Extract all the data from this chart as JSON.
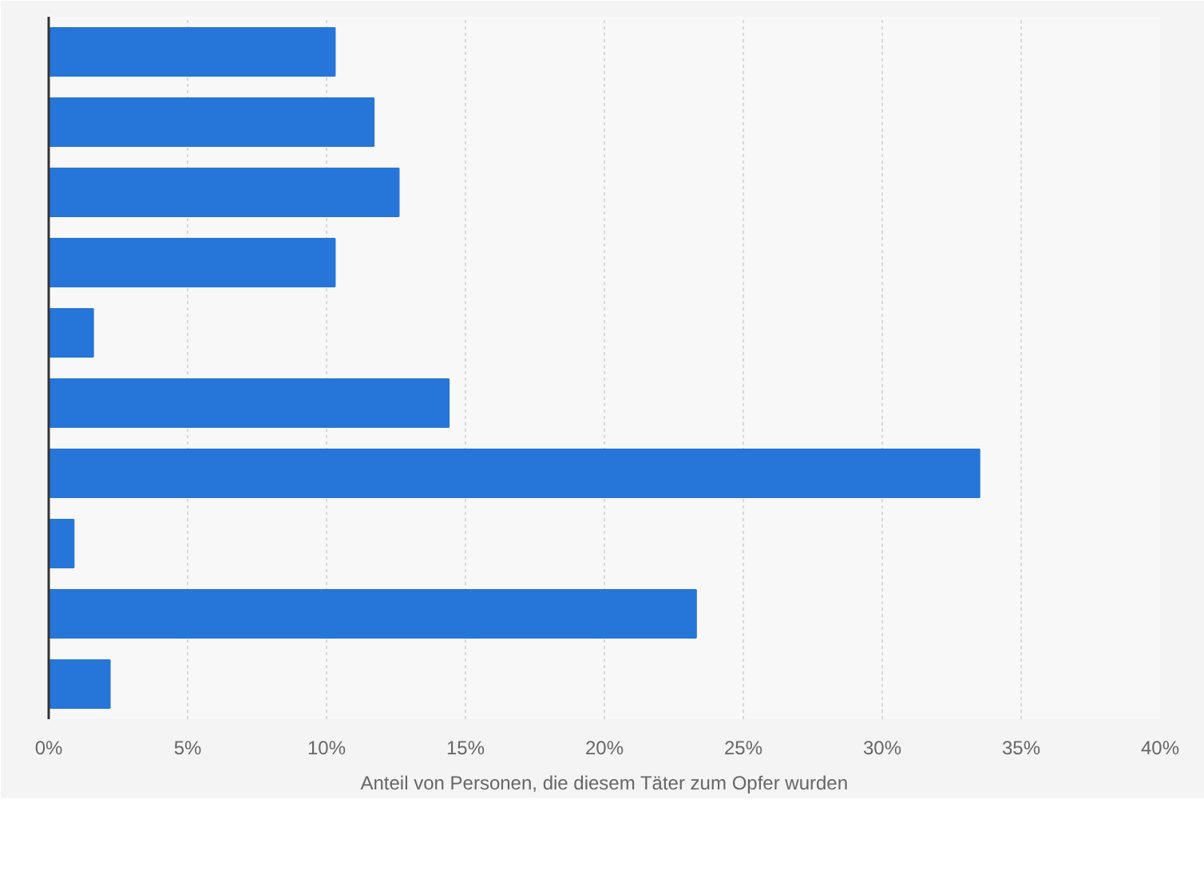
{
  "chart_data": {
    "type": "bar",
    "orientation": "horizontal",
    "xlabel": "Anteil von Personen, die diesem Täter zum Opfer wurden",
    "categories": [
      null,
      null,
      null,
      null,
      null,
      null,
      null,
      null,
      null,
      null
    ],
    "values": [
      10.3,
      11.7,
      12.6,
      10.3,
      1.6,
      14.4,
      33.5,
      0.9,
      23.3,
      2.2
    ],
    "color": "#2675d9",
    "xlim": [
      0,
      40
    ],
    "xticks": [
      {
        "value": 0,
        "label": "0%"
      },
      {
        "value": 5,
        "label": "5%"
      },
      {
        "value": 10,
        "label": "10%"
      },
      {
        "value": 15,
        "label": "15%"
      },
      {
        "value": 20,
        "label": "20%"
      },
      {
        "value": 25,
        "label": "25%"
      },
      {
        "value": 30,
        "label": "30%"
      },
      {
        "value": 35,
        "label": "35%"
      },
      {
        "value": 40,
        "label": "40%"
      }
    ],
    "grid": "x",
    "tick_labels": "x"
  }
}
